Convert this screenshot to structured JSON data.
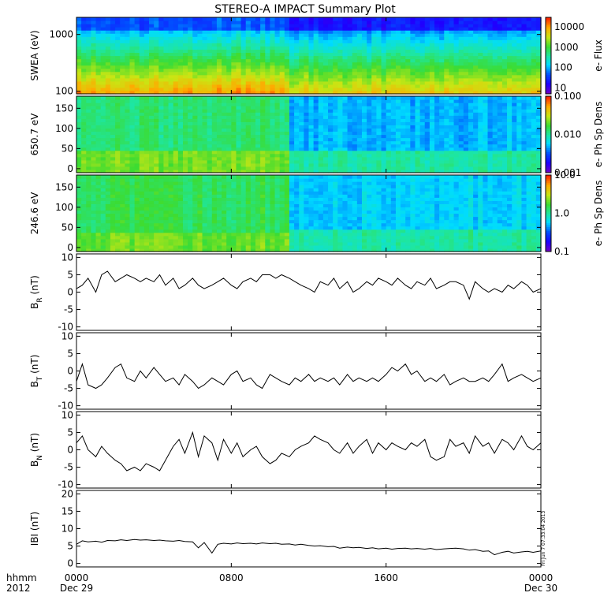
{
  "figure": {
    "title": "STEREO-A IMPACT Summary Plot",
    "stamp": "Fri Jun  7 07:33:04 2013"
  },
  "time_axis": {
    "corner_labels": [
      "hhmm",
      "2012"
    ],
    "ticks": [
      {
        "hour": 0,
        "label": "0000",
        "sub": "Dec 29"
      },
      {
        "hour": 8,
        "label": "0800",
        "sub": ""
      },
      {
        "hour": 16,
        "label": "1600",
        "sub": ""
      },
      {
        "hour": 24,
        "label": "0000",
        "sub": "Dec 30"
      }
    ]
  },
  "chart_data": [
    {
      "type": "heatmap",
      "ylabel": "SWEA (eV)",
      "yscale": "log",
      "ylim": [
        90,
        2000
      ],
      "yticks": [
        {
          "v": 100,
          "label": "100"
        },
        {
          "v": 1000,
          "label": "1000"
        }
      ],
      "colorbar": {
        "label": "e- Flux",
        "scale": "log",
        "range": [
          5,
          30000
        ],
        "ticks": [
          {
            "v": 10,
            "label": "10"
          },
          {
            "v": 100,
            "label": "100"
          },
          {
            "v": 1000,
            "label": "1000"
          },
          {
            "v": 10000,
            "label": "10000"
          }
        ]
      },
      "transition_hour": 10.9
    },
    {
      "type": "heatmap",
      "ylabel": "650.7 eV",
      "yscale": "linear",
      "ylim": [
        -10,
        180
      ],
      "yticks": [
        {
          "v": 0,
          "label": "0"
        },
        {
          "v": 50,
          "label": "50"
        },
        {
          "v": 100,
          "label": "100"
        },
        {
          "v": 150,
          "label": "150"
        }
      ],
      "colorbar": {
        "label": "e- Ph Sp Dens",
        "scale": "log",
        "range": [
          0.001,
          0.1
        ],
        "ticks": [
          {
            "v": 0.001,
            "label": "0.001"
          },
          {
            "v": 0.01,
            "label": "0.010"
          },
          {
            "v": 0.1,
            "label": "0.100"
          }
        ]
      },
      "transition_hour": 10.9
    },
    {
      "type": "heatmap",
      "ylabel": "246.6 eV",
      "yscale": "linear",
      "ylim": [
        -10,
        180
      ],
      "yticks": [
        {
          "v": 0,
          "label": "0"
        },
        {
          "v": 50,
          "label": "50"
        },
        {
          "v": 100,
          "label": "100"
        },
        {
          "v": 150,
          "label": "150"
        }
      ],
      "colorbar": {
        "label": "e- Ph Sp Dens",
        "scale": "log",
        "range": [
          0.1,
          10
        ],
        "ticks": [
          {
            "v": 0.1,
            "label": "0.1"
          },
          {
            "v": 1,
            "label": "1.0"
          },
          {
            "v": 10,
            "label": "10.0"
          }
        ]
      },
      "transition_hour": 10.9
    },
    {
      "type": "line",
      "ylabel": "B",
      "ysub": "R",
      "yunit": "(nT)",
      "ylim": [
        -11,
        11
      ],
      "yticks": [
        {
          "v": -10,
          "label": "-10"
        },
        {
          "v": -5,
          "label": "-5"
        },
        {
          "v": 0,
          "label": "0"
        },
        {
          "v": 5,
          "label": "5"
        },
        {
          "v": 10,
          "label": "10"
        }
      ],
      "x": [
        0,
        0.3,
        0.6,
        1.0,
        1.3,
        1.6,
        2.0,
        2.3,
        2.6,
        3.0,
        3.3,
        3.6,
        4.0,
        4.3,
        4.6,
        5.0,
        5.3,
        5.6,
        6.0,
        6.3,
        6.6,
        7.0,
        7.3,
        7.6,
        8.0,
        8.3,
        8.6,
        9.0,
        9.3,
        9.6,
        10.0,
        10.3,
        10.6,
        11.0,
        11.3,
        11.6,
        12.0,
        12.3,
        12.6,
        13.0,
        13.3,
        13.6,
        14.0,
        14.3,
        14.6,
        15.0,
        15.3,
        15.6,
        16.0,
        16.3,
        16.6,
        17.0,
        17.3,
        17.6,
        18.0,
        18.3,
        18.6,
        19.0,
        19.3,
        19.6,
        20.0,
        20.3,
        20.6,
        21.0,
        21.3,
        21.6,
        22.0,
        22.3,
        22.6,
        23.0,
        23.3,
        23.6,
        24.0
      ],
      "y": [
        1,
        2,
        4,
        0,
        5,
        6,
        3,
        4,
        5,
        4,
        3,
        4,
        3,
        5,
        2,
        4,
        1,
        2,
        4,
        2,
        1,
        2,
        3,
        4,
        2,
        1,
        3,
        4,
        3,
        5,
        5,
        4,
        5,
        4,
        3,
        2,
        1,
        0,
        3,
        2,
        4,
        1,
        3,
        0,
        1,
        3,
        2,
        4,
        3,
        2,
        4,
        2,
        1,
        3,
        2,
        4,
        1,
        2,
        3,
        3,
        2,
        -2,
        3,
        1,
        0,
        1,
        0,
        2,
        1,
        3,
        2,
        0,
        1
      ]
    },
    {
      "type": "line",
      "ylabel": "B",
      "ysub": "T",
      "yunit": "(nT)",
      "ylim": [
        -11,
        11
      ],
      "yticks": [
        {
          "v": -10,
          "label": "-10"
        },
        {
          "v": -5,
          "label": "-5"
        },
        {
          "v": 0,
          "label": "0"
        },
        {
          "v": 5,
          "label": "5"
        },
        {
          "v": 10,
          "label": "10"
        }
      ],
      "x": [
        0,
        0.3,
        0.6,
        1.0,
        1.3,
        1.6,
        2.0,
        2.3,
        2.6,
        3.0,
        3.3,
        3.6,
        4.0,
        4.3,
        4.6,
        5.0,
        5.3,
        5.6,
        6.0,
        6.3,
        6.6,
        7.0,
        7.3,
        7.6,
        8.0,
        8.3,
        8.6,
        9.0,
        9.3,
        9.6,
        10.0,
        10.3,
        10.6,
        11.0,
        11.3,
        11.6,
        12.0,
        12.3,
        12.6,
        13.0,
        13.3,
        13.6,
        14.0,
        14.3,
        14.6,
        15.0,
        15.3,
        15.6,
        16.0,
        16.3,
        16.6,
        17.0,
        17.3,
        17.6,
        18.0,
        18.3,
        18.6,
        19.0,
        19.3,
        19.6,
        20.0,
        20.3,
        20.6,
        21.0,
        21.3,
        21.6,
        22.0,
        22.3,
        22.6,
        23.0,
        23.3,
        23.6,
        24.0
      ],
      "y": [
        -3,
        2,
        -4,
        -5,
        -4,
        -2,
        1,
        2,
        -2,
        -3,
        0,
        -2,
        1,
        -1,
        -3,
        -2,
        -4,
        -1,
        -3,
        -5,
        -4,
        -2,
        -3,
        -4,
        -1,
        0,
        -3,
        -2,
        -4,
        -5,
        -1,
        -2,
        -3,
        -4,
        -2,
        -3,
        -1,
        -3,
        -2,
        -3,
        -2,
        -4,
        -1,
        -3,
        -2,
        -3,
        -2,
        -3,
        -1,
        1,
        0,
        2,
        -1,
        0,
        -3,
        -2,
        -3,
        -1,
        -4,
        -3,
        -2,
        -3,
        -3,
        -2,
        -3,
        -1,
        2,
        -3,
        -2,
        -1,
        -2,
        -3,
        -2
      ]
    },
    {
      "type": "line",
      "ylabel": "B",
      "ysub": "N",
      "yunit": "(nT)",
      "ylim": [
        -11,
        11
      ],
      "yticks": [
        {
          "v": -10,
          "label": "-10"
        },
        {
          "v": -5,
          "label": "-5"
        },
        {
          "v": 0,
          "label": "0"
        },
        {
          "v": 5,
          "label": "5"
        },
        {
          "v": 10,
          "label": "10"
        }
      ],
      "x": [
        0,
        0.3,
        0.6,
        1.0,
        1.3,
        1.6,
        2.0,
        2.3,
        2.6,
        3.0,
        3.3,
        3.6,
        4.0,
        4.3,
        4.6,
        5.0,
        5.3,
        5.6,
        6.0,
        6.3,
        6.6,
        7.0,
        7.3,
        7.6,
        8.0,
        8.3,
        8.6,
        9.0,
        9.3,
        9.6,
        10.0,
        10.3,
        10.6,
        11.0,
        11.3,
        11.6,
        12.0,
        12.3,
        12.6,
        13.0,
        13.3,
        13.6,
        14.0,
        14.3,
        14.6,
        15.0,
        15.3,
        15.6,
        16.0,
        16.3,
        16.6,
        17.0,
        17.3,
        17.6,
        18.0,
        18.3,
        18.6,
        19.0,
        19.3,
        19.6,
        20.0,
        20.3,
        20.6,
        21.0,
        21.3,
        21.6,
        22.0,
        22.3,
        22.6,
        23.0,
        23.3,
        23.6,
        24.0
      ],
      "y": [
        2,
        4,
        0,
        -2,
        1,
        -1,
        -3,
        -4,
        -6,
        -5,
        -6,
        -4,
        -5,
        -6,
        -3,
        1,
        3,
        -1,
        5,
        -2,
        4,
        2,
        -3,
        3,
        -1,
        2,
        -2,
        0,
        1,
        -2,
        -4,
        -3,
        -1,
        -2,
        0,
        1,
        2,
        4,
        3,
        2,
        0,
        -1,
        2,
        -1,
        1,
        3,
        -1,
        2,
        0,
        2,
        1,
        0,
        2,
        1,
        3,
        -2,
        -3,
        -2,
        3,
        1,
        2,
        -1,
        4,
        1,
        2,
        -1,
        3,
        2,
        0,
        4,
        1,
        0,
        2
      ]
    },
    {
      "type": "line",
      "ylabel": "IBI",
      "ysub": "",
      "yunit": "(nT)",
      "ylim": [
        -1,
        21
      ],
      "yticks": [
        {
          "v": 0,
          "label": "0"
        },
        {
          "v": 5,
          "label": "5"
        },
        {
          "v": 10,
          "label": "10"
        },
        {
          "v": 15,
          "label": "15"
        },
        {
          "v": 20,
          "label": "20"
        }
      ],
      "x": [
        0,
        0.3,
        0.6,
        1.0,
        1.3,
        1.6,
        2.0,
        2.3,
        2.6,
        3.0,
        3.3,
        3.6,
        4.0,
        4.3,
        4.6,
        5.0,
        5.3,
        5.6,
        6.0,
        6.3,
        6.6,
        7.0,
        7.3,
        7.6,
        8.0,
        8.3,
        8.6,
        9.0,
        9.3,
        9.6,
        10.0,
        10.3,
        10.6,
        11.0,
        11.3,
        11.6,
        12.0,
        12.3,
        12.6,
        13.0,
        13.3,
        13.6,
        14.0,
        14.3,
        14.6,
        15.0,
        15.3,
        15.6,
        16.0,
        16.3,
        16.6,
        17.0,
        17.3,
        17.6,
        18.0,
        18.3,
        18.6,
        19.0,
        19.3,
        19.6,
        20.0,
        20.3,
        20.6,
        21.0,
        21.3,
        21.6,
        22.0,
        22.3,
        22.6,
        23.0,
        23.3,
        23.6,
        24.0
      ],
      "y": [
        5.5,
        6.5,
        6.2,
        6.4,
        6.1,
        6.6,
        6.5,
        6.8,
        6.6,
        6.9,
        6.7,
        6.8,
        6.6,
        6.7,
        6.5,
        6.4,
        6.6,
        6.3,
        6.2,
        4.5,
        6.0,
        3.0,
        5.5,
        5.8,
        5.6,
        5.9,
        5.7,
        5.8,
        5.6,
        5.9,
        5.7,
        5.8,
        5.5,
        5.6,
        5.3,
        5.5,
        5.2,
        5.0,
        5.1,
        4.8,
        4.9,
        4.4,
        4.7,
        4.5,
        4.6,
        4.3,
        4.5,
        4.2,
        4.4,
        4.1,
        4.3,
        4.4,
        4.2,
        4.3,
        4.1,
        4.3,
        4.0,
        4.2,
        4.3,
        4.4,
        4.2,
        3.8,
        4.0,
        3.5,
        3.6,
        2.5,
        3.2,
        3.5,
        3.0,
        3.3,
        3.5,
        3.2,
        3.6
      ]
    }
  ]
}
